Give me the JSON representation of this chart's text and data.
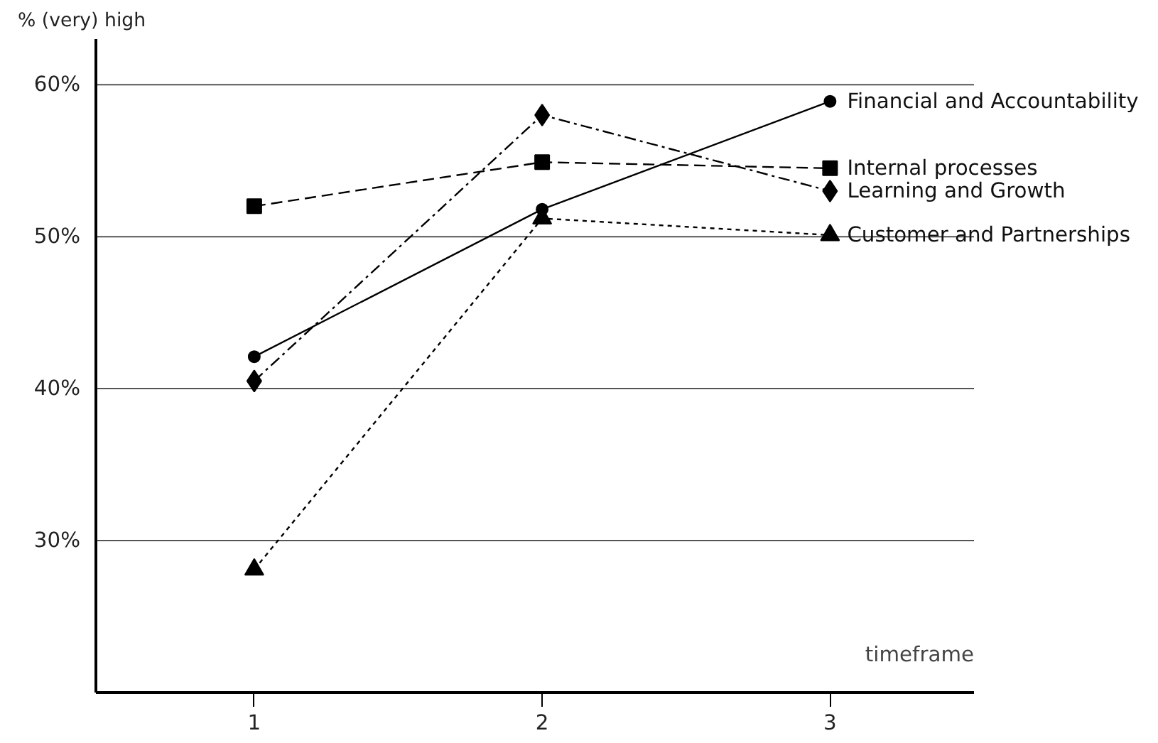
{
  "chart_data": {
    "type": "line",
    "xlabel": "timeframe",
    "ylabel": "% (very) high",
    "x": [
      1,
      2,
      3
    ],
    "xlim": [
      0.45,
      3.5
    ],
    "xticks": [
      1,
      2,
      3
    ],
    "ylim": [
      20,
      63
    ],
    "yticks": [
      {
        "value": 30,
        "label": "30%"
      },
      {
        "value": 40,
        "label": "40%"
      },
      {
        "value": 50,
        "label": "50%"
      },
      {
        "value": 60,
        "label": "60%"
      }
    ],
    "grid": "y",
    "legend": false,
    "series": [
      {
        "name": "Financial and Accountability",
        "color": "#000000",
        "values": [
          42.1,
          51.8,
          58.9
        ],
        "marker": "circle",
        "line_style": "solid"
      },
      {
        "name": "Internal processes",
        "color": "#000000",
        "values": [
          52,
          54.9,
          54.5
        ],
        "marker": "square",
        "line_style": "dashed"
      },
      {
        "name": "Learning and Growth",
        "color": "#000000",
        "values": [
          40.5,
          58,
          53
        ],
        "marker": "diamond",
        "line_style": "dashdot"
      },
      {
        "name": "Customer and Partnerships",
        "color": "#000000",
        "values": [
          28.1,
          51.2,
          50.1
        ],
        "marker": "triangle",
        "line_style": "dotted"
      }
    ]
  }
}
